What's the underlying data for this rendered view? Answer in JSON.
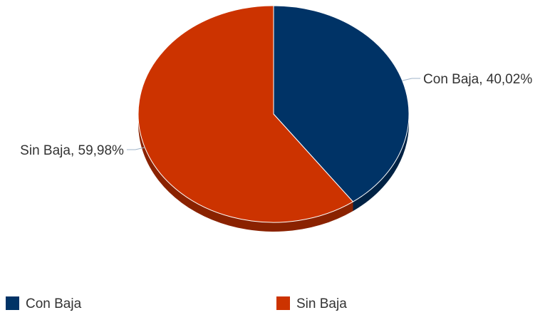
{
  "chart_data": {
    "type": "pie",
    "title": "",
    "slices": [
      {
        "label": "Con Baja",
        "value": 40.02,
        "value_text": "40,02%",
        "color": "#003366"
      },
      {
        "label": "Sin Baja",
        "value": 59.98,
        "value_text": "59,98%",
        "color": "#cc3300"
      }
    ],
    "legend": {
      "position": "bottom",
      "items": [
        "Con Baja",
        "Sin Baja"
      ]
    },
    "three_d": true
  },
  "colors": {
    "con_baja": "#003366",
    "con_baja_side": "#002244",
    "sin_baja": "#cc3300",
    "sin_baja_side": "#8a2200",
    "connector": "#9fb3c8"
  }
}
